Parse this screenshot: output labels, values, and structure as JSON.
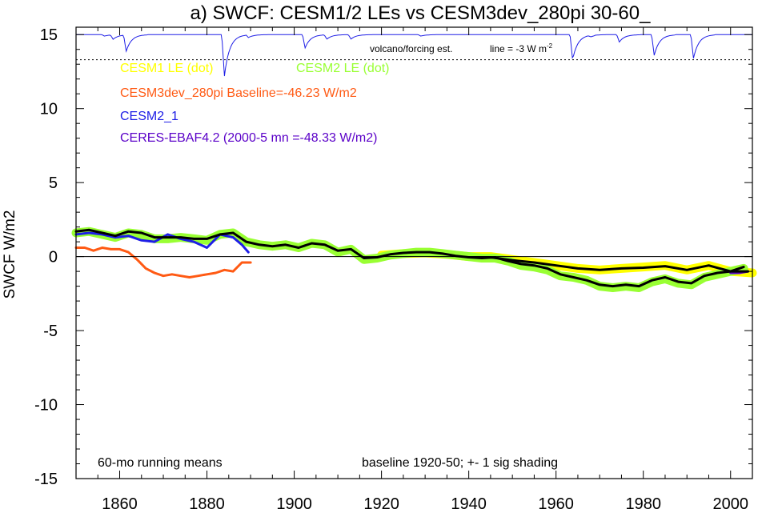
{
  "chart_data": {
    "type": "line",
    "title": "a) SWCF: CESM1/2 LEs vs CESM3dev_280pi 30-60_",
    "ylabel": "SWCF W/m2",
    "xlim": [
      1850,
      2005
    ],
    "ylim": [
      -15,
      15.5
    ],
    "x_ticks": [
      1860,
      1880,
      1900,
      1920,
      1940,
      1960,
      1980,
      2000
    ],
    "y_ticks": [
      15,
      10,
      5,
      0,
      -5,
      -10,
      -15
    ],
    "zero_line": 0,
    "legend": [
      {
        "label": "CESM1 LE (dot)",
        "color": "#ffff00"
      },
      {
        "label": "CESM2 LE (dot)",
        "color": "#99ff33"
      },
      {
        "label": "CESM3dev_280pi Baseline=-46.23 W/m2",
        "color": "#ff5a14"
      },
      {
        "label": "CESM2_1",
        "color": "#1e1ee6"
      },
      {
        "label": "CERES-EBAF4.2 (2000-5 mn =-48.33 W/m2)",
        "color": "#5a00c8"
      }
    ],
    "annotations": {
      "volcano": "volcano/forcing est.",
      "line_scale": "line = -3 W m",
      "line_scale_sup": "-2",
      "running_mean": "60-mo running means",
      "baseline": "baseline 1920-50; +- 1 sig shading"
    },
    "volcano_baseline": 13.3,
    "volcano_spikes": [
      {
        "year": 1856.5,
        "value": 14.9
      },
      {
        "year": 1858.5,
        "value": 14.7
      },
      {
        "year": 1861.5,
        "value": 13.9
      },
      {
        "year": 1884,
        "value": 12.2
      },
      {
        "year": 1889.5,
        "value": 14.8
      },
      {
        "year": 1902.5,
        "value": 14.1
      },
      {
        "year": 1907.5,
        "value": 14.7
      },
      {
        "year": 1913,
        "value": 14.7
      },
      {
        "year": 1929,
        "value": 14.9
      },
      {
        "year": 1963.8,
        "value": 13.3
      },
      {
        "year": 1968,
        "value": 14.9
      },
      {
        "year": 1974.5,
        "value": 14.5
      },
      {
        "year": 1982.5,
        "value": 13.6
      },
      {
        "year": 1991.5,
        "value": 13.4
      }
    ],
    "series": [
      {
        "name": "CESM1 LE (dot)",
        "color": "#ffff00",
        "x": [
          1920,
          1925,
          1930,
          1935,
          1940,
          1945,
          1950,
          1955,
          1960,
          1965,
          1970,
          1975,
          1980,
          1985,
          1990,
          1995,
          2000,
          2005
        ],
        "y": [
          0.1,
          0.2,
          0.25,
          0.15,
          0.0,
          0.0,
          -0.2,
          -0.4,
          -0.6,
          -0.8,
          -0.9,
          -0.8,
          -0.7,
          -0.6,
          -0.9,
          -0.6,
          -1.0,
          -1.1
        ]
      },
      {
        "name": "CESM2 LE (dot)",
        "color": "#99ff33",
        "x": [
          1850,
          1853,
          1856,
          1859,
          1862,
          1865,
          1868,
          1871,
          1874,
          1877,
          1880,
          1883,
          1886,
          1889,
          1892,
          1895,
          1898,
          1901,
          1904,
          1907,
          1910,
          1913,
          1916,
          1919,
          1922,
          1925,
          1928,
          1931,
          1934,
          1937,
          1940,
          1943,
          1946,
          1949,
          1952,
          1955,
          1958,
          1961,
          1964,
          1967,
          1970,
          1973,
          1976,
          1979,
          1982,
          1985,
          1988,
          1991,
          1994,
          1997,
          2000,
          2003
        ],
        "y": [
          1.6,
          1.7,
          1.5,
          1.3,
          1.6,
          1.5,
          1.2,
          1.2,
          1.3,
          1.2,
          1.1,
          1.5,
          1.6,
          1.0,
          0.8,
          0.7,
          0.8,
          0.6,
          0.9,
          0.8,
          0.3,
          0.5,
          -0.2,
          -0.1,
          0.1,
          0.2,
          0.3,
          0.3,
          0.2,
          0.1,
          0.0,
          -0.1,
          -0.1,
          -0.3,
          -0.6,
          -0.7,
          -0.9,
          -1.3,
          -1.4,
          -1.6,
          -2.0,
          -2.1,
          -2.0,
          -2.1,
          -1.7,
          -1.5,
          -1.8,
          -1.9,
          -1.4,
          -1.2,
          -1.0,
          -0.8
        ]
      },
      {
        "name": "CESM3dev_280pi Baseline=-46.23 W/m2",
        "color": "#ff5a14",
        "x": [
          1850,
          1852,
          1854,
          1856,
          1858,
          1860,
          1862,
          1864,
          1866,
          1868,
          1870,
          1872,
          1874,
          1876,
          1878,
          1880,
          1882,
          1884,
          1886,
          1888,
          1890
        ],
        "y": [
          0.6,
          0.6,
          0.4,
          0.6,
          0.5,
          0.5,
          0.3,
          -0.2,
          -0.8,
          -1.1,
          -1.3,
          -1.2,
          -1.3,
          -1.4,
          -1.3,
          -1.2,
          -1.1,
          -0.9,
          -1.0,
          -0.4,
          -0.4
        ]
      },
      {
        "name": "CESM2_1",
        "color": "#1e1ee6",
        "x": [
          1850,
          1853,
          1856,
          1859,
          1862,
          1865,
          1868,
          1871,
          1874,
          1877,
          1880,
          1883,
          1886,
          1888,
          1889.5
        ],
        "y": [
          1.5,
          1.6,
          1.5,
          1.3,
          1.4,
          1.1,
          1.0,
          1.5,
          1.2,
          1.0,
          0.6,
          1.5,
          1.3,
          0.8,
          0.3
        ]
      },
      {
        "name": "CERES-EBAF4.2 (2000-5 mn =-48.33 W/m2)",
        "color": "#5a00c8",
        "x": [
          2000,
          2002,
          2004
        ],
        "y": [
          -1.1,
          -1.1,
          -1.0
        ]
      },
      {
        "name": "",
        "color": "#000000",
        "x": [
          1850,
          1853,
          1856,
          1859,
          1862,
          1865,
          1868,
          1871,
          1874,
          1877,
          1880,
          1883,
          1886,
          1889,
          1892,
          1895,
          1898,
          1901,
          1904,
          1907,
          1910,
          1913,
          1916,
          1919,
          1922,
          1925,
          1928,
          1931,
          1934,
          1937,
          1940,
          1943,
          1946,
          1949,
          1952,
          1955,
          1958,
          1961,
          1964,
          1967,
          1970,
          1973,
          1976,
          1979,
          1982,
          1985,
          1988,
          1991,
          1994,
          1997,
          2000,
          2003
        ],
        "y": [
          1.7,
          1.8,
          1.6,
          1.4,
          1.7,
          1.6,
          1.3,
          1.3,
          1.3,
          1.2,
          1.2,
          1.5,
          1.6,
          1.0,
          0.8,
          0.7,
          0.8,
          0.6,
          0.9,
          0.8,
          0.4,
          0.5,
          -0.1,
          -0.05,
          0.15,
          0.25,
          0.3,
          0.3,
          0.2,
          0.05,
          -0.05,
          -0.1,
          -0.05,
          -0.3,
          -0.5,
          -0.6,
          -0.8,
          -1.2,
          -1.4,
          -1.6,
          -1.9,
          -2.0,
          -1.9,
          -2.0,
          -1.6,
          -1.4,
          -1.7,
          -1.8,
          -1.3,
          -1.1,
          -1.0,
          -0.7
        ]
      },
      {
        "name": "",
        "color": "#000000",
        "x": [
          1940,
          1945,
          1950,
          1955,
          1960,
          1965,
          1970,
          1975,
          1980,
          1985,
          1990,
          1995,
          2000,
          2004
        ],
        "y": [
          -0.05,
          -0.05,
          -0.25,
          -0.4,
          -0.6,
          -0.8,
          -0.9,
          -0.8,
          -0.75,
          -0.65,
          -0.9,
          -0.6,
          -1.0,
          -1.0
        ]
      }
    ]
  }
}
